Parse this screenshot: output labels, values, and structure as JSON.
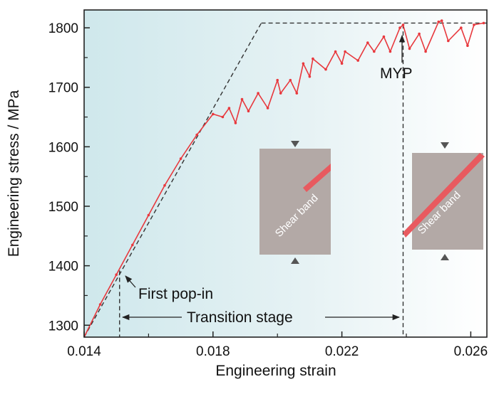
{
  "chart_data": {
    "type": "line",
    "title": "",
    "xlabel": "Engineering strain",
    "ylabel": "Engineering stress / MPa",
    "xlim": [
      0.014,
      0.0265
    ],
    "ylim": [
      1280,
      1830
    ],
    "xticks": [
      0.014,
      0.018,
      0.022,
      0.026
    ],
    "xtick_labels": [
      "0.014",
      "0.018",
      "0.022",
      "0.026"
    ],
    "yticks": [
      1300,
      1400,
      1500,
      1600,
      1700,
      1800
    ],
    "ytick_labels": [
      "1300",
      "1400",
      "1500",
      "1600",
      "1700",
      "1800"
    ],
    "grid": false,
    "colors": {
      "series": "#e8383d",
      "guide": "#333333",
      "background_start": "#cfe8ec",
      "background_end": "#ffffff",
      "inset_block": "#b3a9a6",
      "shear_band": "#e85a5f"
    },
    "series": [
      {
        "x": [
          0.014,
          0.0145,
          0.015,
          0.0155,
          0.016,
          0.0165,
          0.017,
          0.0175,
          0.018,
          0.0183,
          0.0185,
          0.0187,
          0.0189,
          0.0191,
          0.0194,
          0.0197,
          0.02,
          0.0201,
          0.0204,
          0.0206,
          0.0208,
          0.021,
          0.0211,
          0.0215,
          0.0218,
          0.022,
          0.0221,
          0.0225,
          0.0228,
          0.023,
          0.0233,
          0.0235,
          0.0238,
          0.0239,
          0.0241,
          0.0244,
          0.0246,
          0.025,
          0.0251,
          0.0253,
          0.0257,
          0.0259,
          0.0261,
          0.0264
        ],
        "y": [
          1280,
          1335,
          1385,
          1435,
          1485,
          1535,
          1580,
          1620,
          1655,
          1650,
          1665,
          1640,
          1680,
          1660,
          1690,
          1665,
          1712,
          1690,
          1712,
          1690,
          1740,
          1718,
          1748,
          1730,
          1760,
          1740,
          1760,
          1745,
          1775,
          1760,
          1785,
          1760,
          1800,
          1805,
          1765,
          1790,
          1760,
          1810,
          1812,
          1778,
          1800,
          1770,
          1805,
          1808
        ]
      }
    ],
    "guide_lines": {
      "elastic_slope": {
        "from": [
          0.014,
          1280
        ],
        "to": [
          0.0195,
          1808
        ]
      },
      "plateau": {
        "from": [
          0.0195,
          1808
        ],
        "to": [
          0.0265,
          1808
        ]
      },
      "first_pop_in_marker": 0.0151,
      "myp_marker": 0.0239,
      "transition_arrow_y": 1298
    },
    "annotations": {
      "first_pop_in": "First pop-in",
      "transition_stage": "Transition stage",
      "myp": "MYP",
      "shear_band_left": "Shear band",
      "shear_band_right": "Shear band"
    }
  }
}
